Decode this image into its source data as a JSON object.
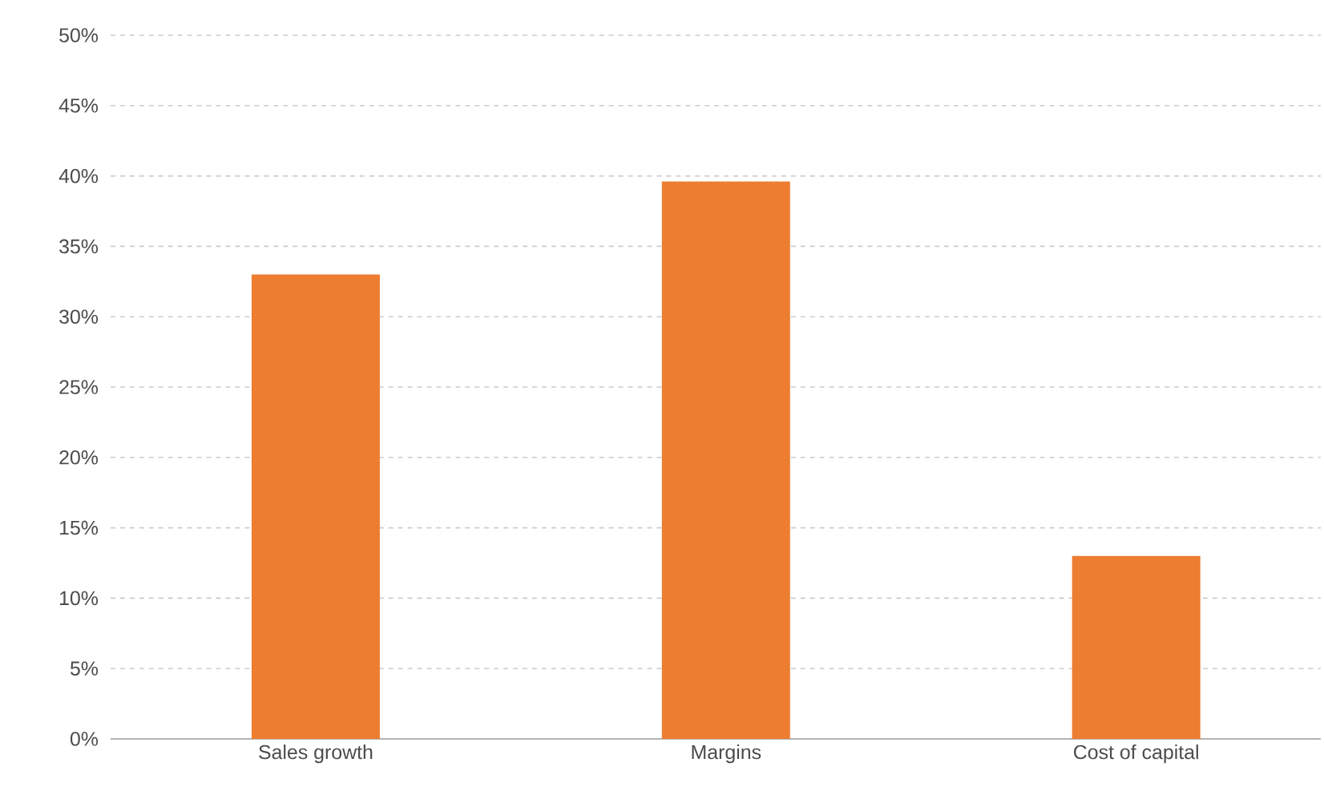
{
  "chart_data": {
    "type": "bar",
    "categories": [
      "Sales growth",
      "Margins",
      "Cost of capital"
    ],
    "values": [
      33,
      39.6,
      13
    ],
    "color": "#ed7d31",
    "ylim": [
      0,
      50
    ],
    "yticks": [
      {
        "value": 0,
        "label": "0%"
      },
      {
        "value": 5,
        "label": "5%"
      },
      {
        "value": 10,
        "label": "10%"
      },
      {
        "value": 15,
        "label": "15%"
      },
      {
        "value": 20,
        "label": "20%"
      },
      {
        "value": 25,
        "label": "25%"
      },
      {
        "value": 30,
        "label": "30%"
      },
      {
        "value": 35,
        "label": "35%"
      },
      {
        "value": 40,
        "label": "40%"
      },
      {
        "value": 45,
        "label": "45%"
      },
      {
        "value": 50,
        "label": "50%"
      }
    ],
    "grid": "y"
  }
}
